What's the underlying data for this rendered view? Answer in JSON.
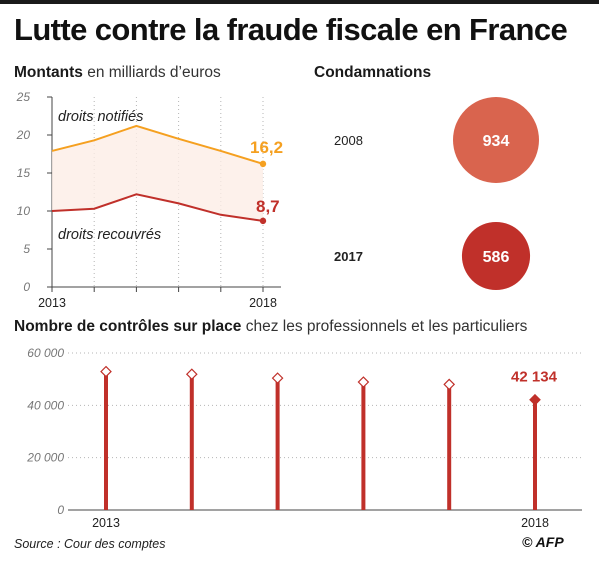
{
  "title": "Lutte contre la fraude fiscale en France",
  "source": "Source : Cour des comptes",
  "credit": "© AFP",
  "sections": {
    "amounts_title_bold": "Montants",
    "amounts_title_light": "en milliards d’euros",
    "convictions_title": "Condamnations",
    "controls_title_bold": "Nombre de contrôles sur place",
    "controls_title_light": "chez les professionnels et les particuliers"
  },
  "colors": {
    "orange": "#f5a020",
    "red": "#c0302a",
    "salmon": "#d9644e",
    "grid": "#b5b5b5",
    "axis": "#666666"
  },
  "chart_data": [
    {
      "type": "line",
      "title": "Montants en milliards d’euros",
      "x": [
        2013,
        2014,
        2015,
        2016,
        2017,
        2018
      ],
      "x_tick_labels": [
        "2013",
        "2018"
      ],
      "y_ticks": [
        "0",
        "5",
        "10",
        "15",
        "20",
        "25"
      ],
      "ylim": [
        0,
        25
      ],
      "grid": "vertical-dotted",
      "series": [
        {
          "name": "droits notifiés",
          "values": [
            17.9,
            19.3,
            21.2,
            19.5,
            17.9,
            16.2
          ],
          "end_label": "16,2",
          "color": "#f5a020"
        },
        {
          "name": "droits recouvrés",
          "values": [
            10.0,
            10.3,
            12.2,
            11.0,
            9.5,
            8.7
          ],
          "end_label": "8,7",
          "color": "#c0302a"
        }
      ]
    },
    {
      "type": "bubble",
      "title": "Condamnations",
      "categories": [
        "2008",
        "2017"
      ],
      "values": [
        934,
        586
      ],
      "value_labels": [
        "934",
        "586"
      ],
      "colors": [
        "#d9644e",
        "#c0302a"
      ]
    },
    {
      "type": "bar",
      "title": "Nombre de contrôles sur place chez les professionnels et les particuliers",
      "x": [
        2013,
        2014,
        2015,
        2016,
        2017,
        2018
      ],
      "x_tick_labels": [
        "2013",
        "2018"
      ],
      "values": [
        52900,
        51900,
        50400,
        48900,
        48000,
        42134
      ],
      "last_value_label": "42 134",
      "y_ticks": [
        "0",
        "20 000",
        "40 000",
        "60 000"
      ],
      "ylim": [
        0,
        60000
      ],
      "grid": "horizontal-dotted"
    }
  ]
}
